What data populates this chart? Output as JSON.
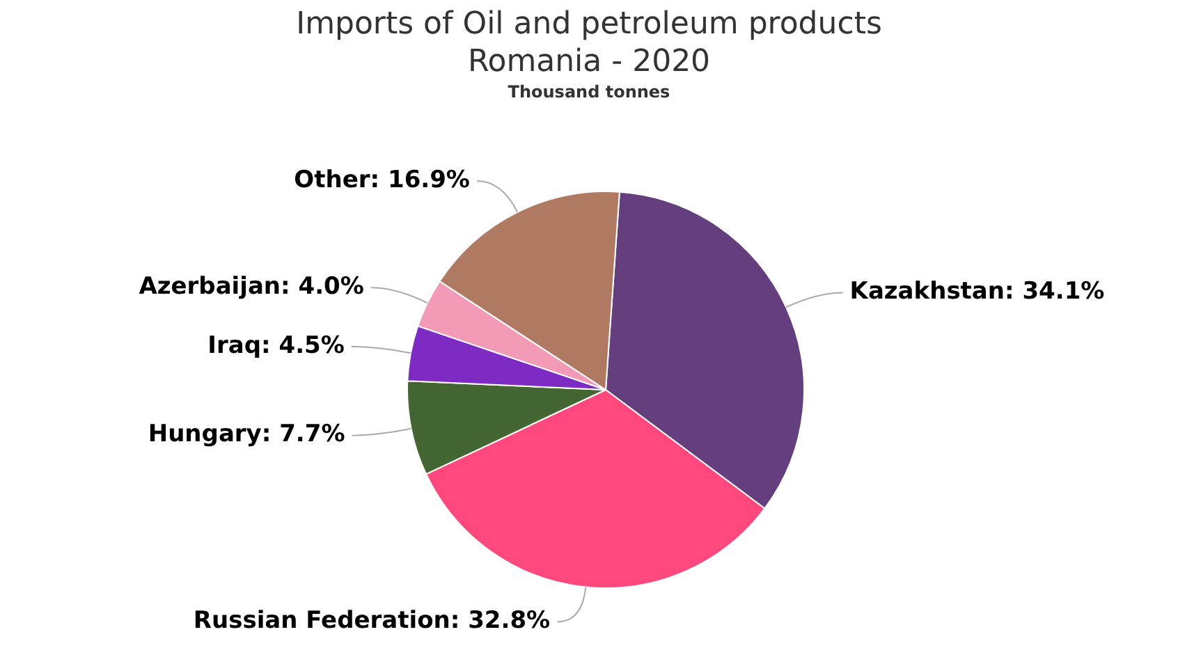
{
  "chart_data": {
    "type": "pie",
    "title": "Imports of Oil and petroleum products\nRomania - 2020",
    "subtitle": "Thousand tonnes",
    "categories": [
      "Kazakhstan",
      "Russian Federation",
      "Hungary",
      "Iraq",
      "Azerbaijan",
      "Other"
    ],
    "values": [
      34.1,
      32.8,
      7.7,
      4.5,
      4.0,
      16.9
    ],
    "value_labels": [
      "34.1%",
      "32.8%",
      "7.7%",
      "4.5%",
      "4.0%",
      "16.9%"
    ],
    "colors": [
      "#643e7d",
      "#ff487d",
      "#436632",
      "#7e2bc4",
      "#f39bb6",
      "#b07a62"
    ],
    "legend": false
  }
}
